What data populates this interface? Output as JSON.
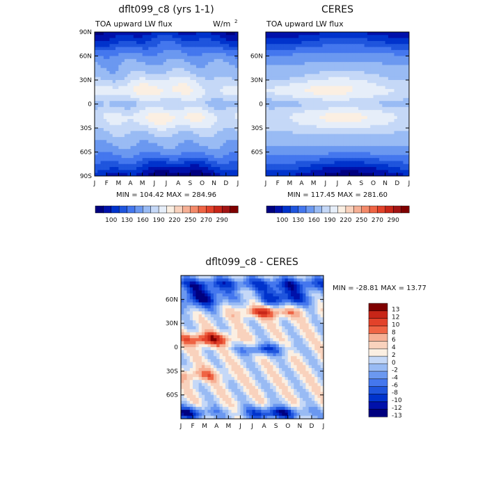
{
  "palette": {
    "negative": [
      "#00007f",
      "#0011aa",
      "#0033cc",
      "#1f55dd",
      "#4477ee",
      "#6b98f0",
      "#99bbf4",
      "#c5d8f7",
      "#e6eef9"
    ],
    "positive": [
      "#fbefe2",
      "#f9d2bd",
      "#f6b095",
      "#f38a6a",
      "#ef6444",
      "#e2422a",
      "#c82618",
      "#a21414",
      "#7f0000"
    ]
  },
  "chart_data": [
    {
      "type": "heatmap",
      "title": "dflt099_c8 (yrs 1-1)",
      "subtitle_left": "TOA upward LW flux",
      "subtitle_right": "W/m",
      "unit_superscript": "2",
      "x_tick_labels": [
        "J",
        "F",
        "M",
        "A",
        "M",
        "J",
        "J",
        "A",
        "S",
        "O",
        "N",
        "D",
        "J"
      ],
      "y_tick_labels": [
        "90N",
        "60N",
        "30N",
        "0",
        "30S",
        "60S",
        "90S"
      ],
      "lat_range": [
        -90,
        90
      ],
      "stats": "MIN = 104.42 MAX = 284.96",
      "colorbar_levels": [
        "100",
        "130",
        "160",
        "190",
        "220",
        "250",
        "270",
        "290"
      ],
      "min": 104.42,
      "max": 284.96
    },
    {
      "type": "heatmap",
      "title": "CERES",
      "subtitle_left": "TOA upward LW flux",
      "x_tick_labels": [
        "J",
        "F",
        "M",
        "A",
        "M",
        "J",
        "J",
        "A",
        "S",
        "O",
        "N",
        "D",
        "J"
      ],
      "y_tick_labels": [
        "60N",
        "30N",
        "0",
        "30S",
        "60S"
      ],
      "lat_range": [
        -90,
        90
      ],
      "stats": "MIN = 117.45 MAX = 281.60",
      "colorbar_levels": [
        "100",
        "130",
        "160",
        "190",
        "220",
        "250",
        "270",
        "290"
      ],
      "min": 117.45,
      "max": 281.6
    },
    {
      "type": "heatmap",
      "title": "dflt099_c8 - CERES",
      "x_tick_labels": [
        "J",
        "F",
        "M",
        "A",
        "M",
        "J",
        "J",
        "A",
        "S",
        "O",
        "N",
        "D",
        "J"
      ],
      "y_tick_labels": [
        "60N",
        "30N",
        "0",
        "30S",
        "60S"
      ],
      "lat_range": [
        -90,
        90
      ],
      "stats": "MIN = -28.81 MAX = 13.77",
      "colorbar_levels": [
        "13",
        "12",
        "10",
        "8",
        "6",
        "4",
        "2",
        "0",
        "-2",
        "-4",
        "-6",
        "-8",
        "-10",
        "-12",
        "-13"
      ],
      "min": -28.81,
      "max": 13.77
    }
  ]
}
